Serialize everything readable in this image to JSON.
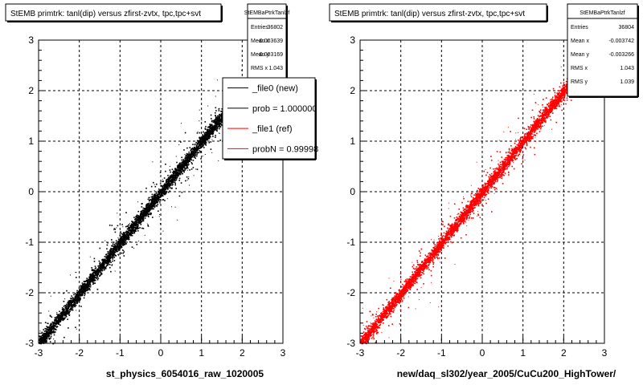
{
  "colors": {
    "background": "#ffffff",
    "frame": "#000000",
    "grid": "#000000",
    "series_new": "#000000",
    "series_ref": "#ff0000"
  },
  "chart_data": [
    {
      "type": "scatter",
      "title": "StEMB primtrk: tanl(dip) versus zfirst-zvtx, tpc,tpc+svt",
      "xlabel": "st_physics_6054016_raw_1020005",
      "ylabel": "",
      "xlim": [
        -3,
        3
      ],
      "ylim": [
        -3,
        3
      ],
      "x_ticks": [
        "-3",
        "-2",
        "-1",
        "0",
        "1",
        "2",
        "3"
      ],
      "y_ticks": [
        "-3",
        "-2",
        "-1",
        "0",
        "1",
        "2",
        "3"
      ],
      "grid": true,
      "marker_color": "#000000",
      "trend": {
        "slope": 1.0,
        "intercept": 0.0,
        "x_range": [
          -3.0,
          2.0
        ]
      },
      "stats": {
        "name": "StEMBaPtrkTanlzf",
        "rows": [
          {
            "label": "Entries",
            "value": "36802"
          },
          {
            "label": "Mean x",
            "value": "-0.003639"
          },
          {
            "label": "Mean y",
            "value": "-0.003169"
          },
          {
            "label": "RMS x",
            "value": "1.043"
          }
        ]
      },
      "legend": {
        "placement": "top-right",
        "entries": [
          {
            "label": "_file0 (new)",
            "color": "#000000"
          },
          {
            "label": "prob = 1.000000",
            "color": "#000000"
          },
          {
            "label": "_file1 (ref)",
            "color": "#ff0000"
          },
          {
            "label": "probN = 0.99998",
            "color": "#ff0000"
          }
        ]
      }
    },
    {
      "type": "scatter",
      "title": "StEMB primtrk: tanl(dip) versus zfirst-zvtx, tpc,tpc+svt",
      "xlabel": "new/daq_sl302/year_2005/CuCu200_HighTower/",
      "ylabel": "",
      "xlim": [
        -3,
        3
      ],
      "ylim": [
        -3,
        3
      ],
      "x_ticks": [
        "-3",
        "-2",
        "-1",
        "0",
        "1",
        "2",
        "3"
      ],
      "y_ticks": [
        "-3",
        "-2",
        "-1",
        "0",
        "1",
        "2",
        "3"
      ],
      "grid": true,
      "marker_color": "#ff0000",
      "trend": {
        "slope": 1.0,
        "intercept": 0.0,
        "x_range": [
          -3.0,
          2.4
        ]
      },
      "stats": {
        "name": "StEMBaPtrkTanlzf",
        "rows": [
          {
            "label": "Entries",
            "value": "36804"
          },
          {
            "label": "Mean x",
            "value": "-0.003742"
          },
          {
            "label": "Mean y",
            "value": "-0.003266"
          },
          {
            "label": "RMS x",
            "value": "1.043"
          },
          {
            "label": "RMS y",
            "value": "1.039"
          }
        ]
      }
    }
  ]
}
